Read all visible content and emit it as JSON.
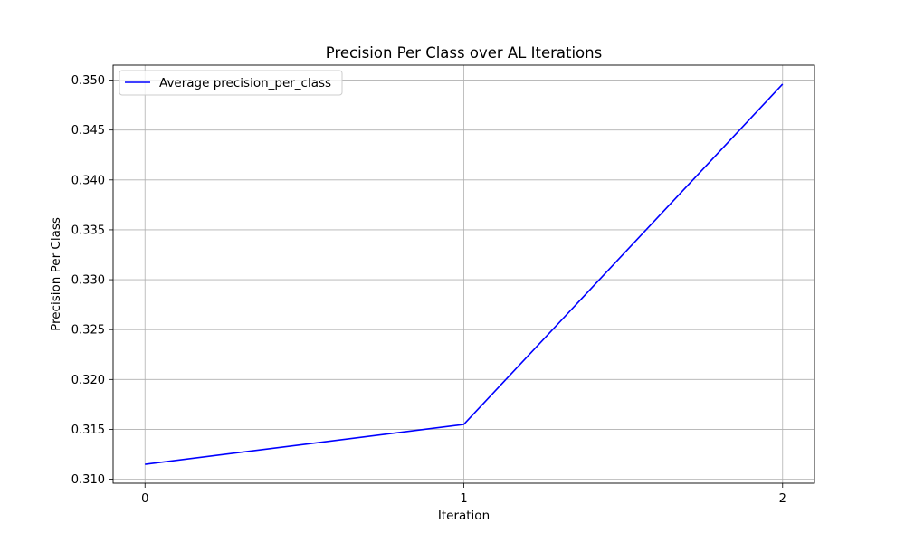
{
  "chart_data": {
    "type": "line",
    "title": "Precision Per Class over AL Iterations",
    "xlabel": "Iteration",
    "ylabel": "Precision Per Class",
    "x": [
      0,
      1,
      2
    ],
    "x_ticks": [
      "0",
      "1",
      "2"
    ],
    "y_ticks": [
      "0.310",
      "0.315",
      "0.320",
      "0.325",
      "0.330",
      "0.335",
      "0.340",
      "0.345",
      "0.350"
    ],
    "xlim": [
      -0.1,
      2.1
    ],
    "ylim": [
      0.3096,
      0.3515
    ],
    "grid": true,
    "legend_position": "upper-left",
    "series": [
      {
        "name": "Average precision_per_class",
        "color": "#0000ff",
        "values": [
          0.3115,
          0.3155,
          0.3496
        ]
      }
    ]
  }
}
